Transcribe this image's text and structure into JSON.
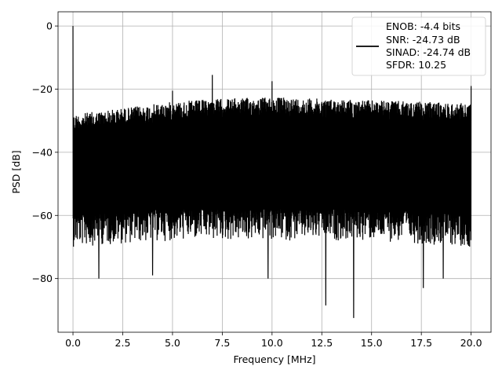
{
  "chart_data": {
    "type": "line",
    "title": "",
    "xlabel": "Frequency [MHz]",
    "ylabel": "PSD [dB]",
    "xlim": [
      -0.75,
      21.0
    ],
    "ylim": [
      -97.0,
      4.5
    ],
    "xticks": [
      0.0,
      2.5,
      5.0,
      7.5,
      10.0,
      12.5,
      15.0,
      17.5,
      20.0
    ],
    "xtick_labels": [
      "0.0",
      "2.5",
      "5.0",
      "7.5",
      "10.0",
      "12.5",
      "15.0",
      "17.5",
      "20.0"
    ],
    "yticks": [
      0,
      -20,
      -40,
      -60,
      -80
    ],
    "ytick_labels": [
      "0",
      "−20",
      "−40",
      "−60",
      "−80"
    ],
    "grid": true,
    "legend_position": "top-right",
    "line_color": "#000000",
    "series": [
      {
        "envelope_upper": [
          [
            0.0,
            -28
          ],
          [
            2.5,
            -26
          ],
          [
            5.0,
            -24
          ],
          [
            7.5,
            -23
          ],
          [
            10.0,
            -22.5
          ],
          [
            12.5,
            -23
          ],
          [
            15.0,
            -23.5
          ],
          [
            17.5,
            -24
          ],
          [
            20.0,
            -24.5
          ]
        ],
        "envelope_lower": [
          [
            0.0,
            -68
          ],
          [
            2.5,
            -67
          ],
          [
            5.0,
            -66
          ],
          [
            7.5,
            -66
          ],
          [
            10.0,
            -66
          ],
          [
            12.5,
            -66
          ],
          [
            15.0,
            -66
          ],
          [
            17.5,
            -67
          ],
          [
            20.0,
            -68
          ]
        ],
        "peaks": [
          [
            0.0,
            0.0
          ],
          [
            7.0,
            -15.5
          ],
          [
            10.0,
            -17.5
          ],
          [
            20.0,
            -19.0
          ],
          [
            5.0,
            -20.5
          ]
        ],
        "dips": [
          [
            1.3,
            -80
          ],
          [
            4.0,
            -79
          ],
          [
            9.8,
            -80
          ],
          [
            12.7,
            -88.5
          ],
          [
            14.1,
            -92.5
          ],
          [
            17.6,
            -83
          ],
          [
            18.6,
            -80
          ]
        ]
      }
    ],
    "legend_lines": [
      "ENOB: -4.4 bits",
      "SNR: -24.73 dB",
      "SINAD: -24.74 dB",
      "SFDR: 10.25"
    ]
  }
}
